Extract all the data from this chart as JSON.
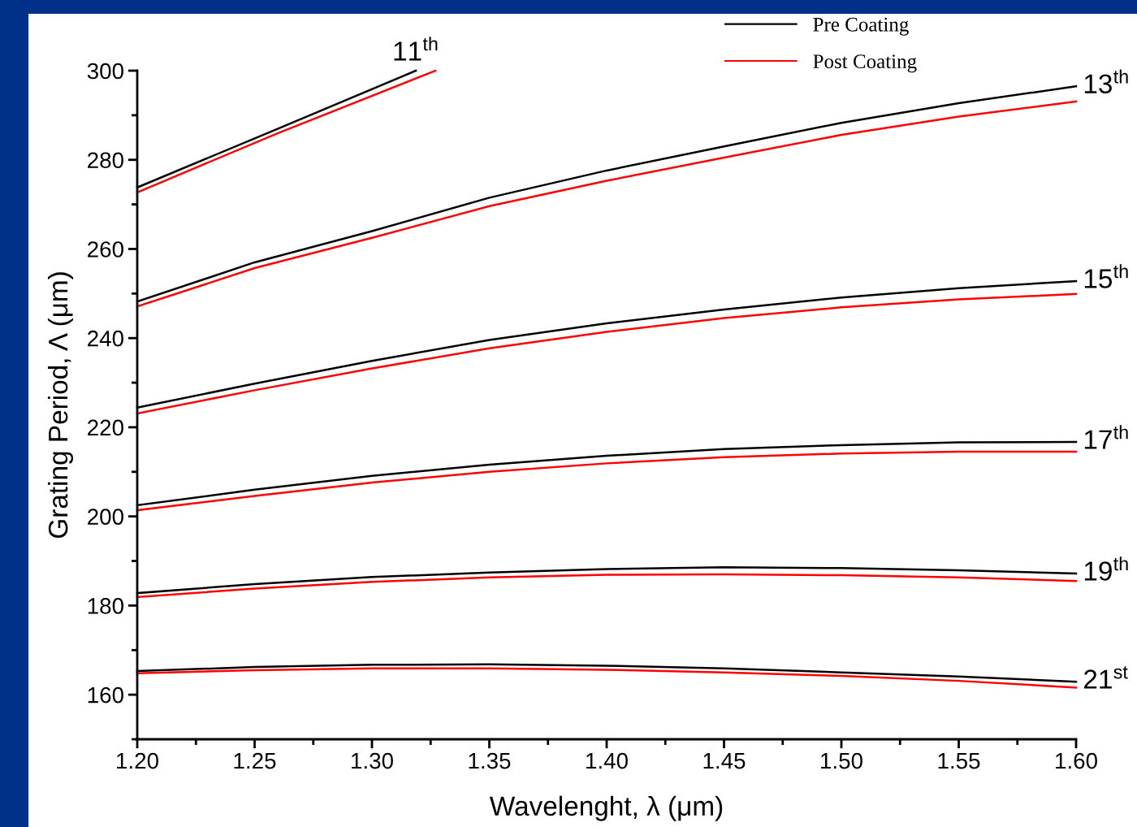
{
  "chart_data": {
    "type": "line",
    "xlabel": "Wavelenght, λ (μm)",
    "ylabel": "Grating Period, Λ (μm)",
    "xlim": [
      1.2,
      1.6
    ],
    "xticks": [
      {
        "value": 1.2,
        "label": "1.20"
      },
      {
        "value": 1.25,
        "label": "1.25"
      },
      {
        "value": 1.3,
        "label": "1.30"
      },
      {
        "value": 1.35,
        "label": "1.35"
      },
      {
        "value": 1.4,
        "label": "1.40"
      },
      {
        "value": 1.45,
        "label": "1.45"
      },
      {
        "value": 1.5,
        "label": "1.50"
      },
      {
        "value": 1.55,
        "label": "1.55"
      },
      {
        "value": 1.6,
        "label": "1.60"
      }
    ],
    "ylim": [
      150,
      300
    ],
    "yticks": [
      160,
      180,
      200,
      220,
      240,
      260,
      280,
      300
    ],
    "grid": false,
    "legend": "top right",
    "marker": "none",
    "line_style": "solid",
    "x": [
      1.2,
      1.25,
      1.3,
      1.35,
      1.4,
      1.45,
      1.5,
      1.55,
      1.6
    ],
    "series": [
      {
        "name": "Pre Coating",
        "color": "#000000",
        "x": [
          1.2,
          1.26,
          1.3187
        ],
        "values": [
          273.8,
          287.0,
          300.0
        ]
      },
      {
        "name": "Post Coating",
        "color": "#ff0000",
        "x": [
          1.2,
          1.26,
          1.327
        ],
        "values": [
          272.7,
          286.0,
          300.0
        ]
      },
      {
        "color": "#000000",
        "values": [
          248.2,
          257.0,
          264.0,
          271.5,
          277.6,
          283.0,
          288.3,
          292.7,
          296.5
        ]
      },
      {
        "color": "#ff0000",
        "values": [
          247.1,
          255.7,
          262.5,
          269.6,
          275.3,
          280.5,
          285.6,
          289.7,
          293.1
        ]
      },
      {
        "color": "#000000",
        "values": [
          224.4,
          229.8,
          234.9,
          239.6,
          243.3,
          246.4,
          249.1,
          251.2,
          252.8
        ]
      },
      {
        "color": "#ff0000",
        "values": [
          223.1,
          228.3,
          233.2,
          237.7,
          241.4,
          244.5,
          246.9,
          248.7,
          249.9
        ]
      },
      {
        "color": "#000000",
        "values": [
          202.5,
          206.0,
          209.1,
          211.6,
          213.6,
          215.1,
          216.0,
          216.6,
          216.7
        ]
      },
      {
        "color": "#ff0000",
        "values": [
          201.4,
          204.6,
          207.6,
          210.0,
          211.9,
          213.3,
          214.1,
          214.5,
          214.5
        ]
      },
      {
        "color": "#000000",
        "values": [
          182.8,
          184.8,
          186.4,
          187.4,
          188.2,
          188.6,
          188.4,
          187.9,
          187.2
        ]
      },
      {
        "color": "#ff0000",
        "values": [
          181.9,
          183.8,
          185.3,
          186.3,
          186.9,
          187.0,
          186.8,
          186.3,
          185.5
        ]
      },
      {
        "color": "#000000",
        "values": [
          165.3,
          166.2,
          166.7,
          166.8,
          166.5,
          165.9,
          165.0,
          164.1,
          162.9
        ]
      },
      {
        "color": "#ff0000",
        "values": [
          164.8,
          165.5,
          165.9,
          165.9,
          165.6,
          165.0,
          164.2,
          163.1,
          161.6
        ]
      }
    ],
    "annotations": [
      "11$^{th}$",
      "13$^{th}$",
      "15$^{th}$",
      "17$^{th}$",
      "19$^{th}$",
      "21$^{st}$"
    ]
  }
}
